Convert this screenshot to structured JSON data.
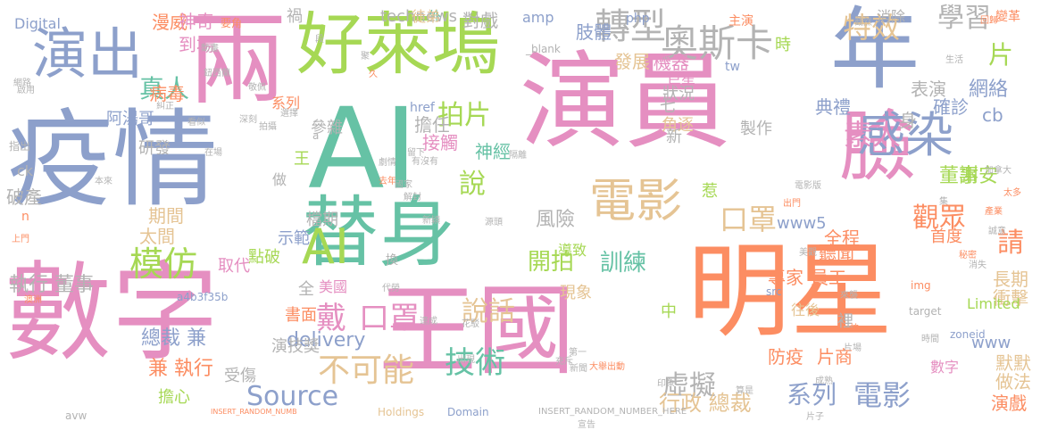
{
  "palette": {
    "pink": "#e58fc1",
    "green": "#66c2a5",
    "orange": "#fc8d62",
    "blue": "#8da0cb",
    "lime": "#a6d854",
    "gold": "#e5c494",
    "grey": "#b3b3b3",
    "yellow": "#ffd92f"
  },
  "words": [
    {
      "text": "疫情",
      "color": "blue",
      "vertical": false
    },
    {
      "text": "AI",
      "color": "green",
      "vertical": false
    },
    {
      "text": "演員",
      "color": "pink",
      "vertical": false
    },
    {
      "text": "數字",
      "color": "pink",
      "vertical": false
    },
    {
      "text": "王國",
      "color": "pink",
      "vertical": false
    },
    {
      "text": "明星",
      "color": "orange",
      "vertical": false
    },
    {
      "text": "兩",
      "color": "pink",
      "vertical": false
    },
    {
      "text": "好萊塢",
      "color": "lime",
      "vertical": false
    },
    {
      "text": "年",
      "color": "blue",
      "vertical": false
    },
    {
      "text": "臉",
      "color": "pink",
      "vertical": false
    },
    {
      "text": "替身",
      "color": "green",
      "vertical": false
    },
    {
      "text": "AI",
      "color": "lime",
      "vertical": false
    },
    {
      "text": "演出",
      "color": "blue",
      "vertical": false
    },
    {
      "text": "電影",
      "color": "gold",
      "vertical": false
    },
    {
      "text": "感染",
      "color": "blue",
      "vertical": false
    },
    {
      "text": "奧斯卡",
      "color": "grey",
      "vertical": false
    },
    {
      "text": "轉型",
      "color": "grey",
      "vertical": false
    },
    {
      "text": "特效",
      "color": "gold",
      "vertical": false
    },
    {
      "text": "學習",
      "color": "grey",
      "vertical": false
    },
    {
      "text": "片",
      "color": "lime",
      "vertical": false
    },
    {
      "text": "口罩",
      "color": "gold",
      "vertical": false
    },
    {
      "text": "觀眾",
      "color": "orange",
      "vertical": false
    },
    {
      "text": "模仿",
      "color": "lime",
      "vertical": false
    },
    {
      "text": "戴",
      "color": "pink",
      "vertical": false
    },
    {
      "text": "口罩",
      "color": "pink",
      "vertical": false
    },
    {
      "text": "不可能",
      "color": "gold",
      "vertical": false
    },
    {
      "text": "技術",
      "color": "green",
      "vertical": false
    },
    {
      "text": "Source",
      "color": "blue",
      "vertical": false
    },
    {
      "text": "說話",
      "color": "gold",
      "vertical": false
    },
    {
      "text": "虛擬",
      "color": "grey",
      "vertical": false
    },
    {
      "text": "系列",
      "color": "blue",
      "vertical": false
    },
    {
      "text": "電影",
      "color": "blue",
      "vertical": false
    },
    {
      "text": "素人",
      "color": "pink",
      "vertical": false
    },
    {
      "text": "拍片",
      "color": "lime",
      "vertical": false
    },
    {
      "text": "開拍",
      "color": "lime",
      "vertical": false
    },
    {
      "text": "訓練",
      "color": "green",
      "vertical": false
    },
    {
      "text": "風險",
      "color": "grey",
      "vertical": false
    },
    {
      "text": "請",
      "color": "orange",
      "vertical": false
    },
    {
      "text": "說",
      "color": "lime",
      "vertical": false
    },
    {
      "text": "謝安",
      "color": "lime",
      "vertical": false
    },
    {
      "text": "董事",
      "color": "lime",
      "vertical": false
    },
    {
      "text": "真人",
      "color": "green",
      "vertical": false
    },
    {
      "text": "總裁 兼",
      "color": "blue",
      "vertical": false
    },
    {
      "text": "兼 執行",
      "color": "orange",
      "vertical": false
    },
    {
      "text": "執行 董事",
      "color": "grey",
      "vertical": false
    },
    {
      "text": "行政 總裁",
      "color": "gold",
      "vertical": false
    },
    {
      "text": "delivery",
      "color": "blue",
      "vertical": false
    },
    {
      "text": "technews",
      "color": "grey",
      "vertical": false
    },
    {
      "text": "網絡",
      "color": "blue",
      "vertical": false
    },
    {
      "text": "典禮",
      "color": "blue",
      "vertical": false
    },
    {
      "text": "確診",
      "color": "blue",
      "vertical": false
    },
    {
      "text": "表演",
      "color": "grey",
      "vertical": false
    },
    {
      "text": "身",
      "color": "grey",
      "vertical": false
    },
    {
      "text": "cb",
      "color": "blue",
      "vertical": false
    },
    {
      "text": "www5",
      "color": "blue",
      "vertical": false
    },
    {
      "text": "www",
      "color": "blue",
      "vertical": false
    },
    {
      "text": "聽聞",
      "color": "orange",
      "vertical": false
    },
    {
      "text": "員工",
      "color": "orange",
      "vertical": false
    },
    {
      "text": "專家",
      "color": "orange",
      "vertical": false
    },
    {
      "text": "首度",
      "color": "orange",
      "vertical": false
    },
    {
      "text": "全程",
      "color": "orange",
      "vertical": false
    },
    {
      "text": "長期",
      "color": "gold",
      "vertical": false
    },
    {
      "text": "衝擊",
      "color": "gold",
      "vertical": false
    },
    {
      "text": "默默",
      "color": "gold",
      "vertical": false
    },
    {
      "text": "做法",
      "color": "gold",
      "vertical": false
    },
    {
      "text": "演戲",
      "color": "orange",
      "vertical": false
    },
    {
      "text": "片商",
      "color": "orange",
      "vertical": false
    },
    {
      "text": "防疫",
      "color": "orange",
      "vertical": false
    },
    {
      "text": "數字",
      "color": "pink",
      "vertical": false
    },
    {
      "text": "Limited",
      "color": "lime",
      "vertical": false
    },
    {
      "text": "zoneid",
      "color": "blue",
      "vertical": false
    },
    {
      "text": "Holdings",
      "color": "gold",
      "vertical": false
    },
    {
      "text": "Domain",
      "color": "blue",
      "vertical": false
    },
    {
      "text": "INSERT_RANDOM_NUMBER_HERE",
      "color": "grey",
      "vertical": false
    },
    {
      "text": "INSERT_RANDOM_NUMB",
      "color": "orange",
      "vertical": false
    },
    {
      "text": "a4b3f35b",
      "color": "blue",
      "vertical": false
    },
    {
      "text": "美國",
      "color": "pink",
      "vertical": false
    },
    {
      "text": "演技獎",
      "color": "grey",
      "vertical": false
    },
    {
      "text": "受傷",
      "color": "grey",
      "vertical": false
    },
    {
      "text": "擔心",
      "color": "lime",
      "vertical": false
    },
    {
      "text": "取代",
      "color": "pink",
      "vertical": false
    },
    {
      "text": "點破",
      "color": "lime",
      "vertical": false
    },
    {
      "text": "導致",
      "color": "lime",
      "vertical": false
    },
    {
      "text": "現象",
      "color": "gold",
      "vertical": false
    },
    {
      "text": "往後",
      "color": "gold",
      "vertical": false
    },
    {
      "text": "中",
      "color": "lime",
      "vertical": false
    },
    {
      "text": "換",
      "color": "grey",
      "vertical": false
    },
    {
      "text": "全",
      "color": "grey",
      "vertical": false
    },
    {
      "text": "書面",
      "color": "orange",
      "vertical": false
    },
    {
      "text": "示範",
      "color": "blue",
      "vertical": false
    },
    {
      "text": "檔期",
      "color": "grey",
      "vertical": false
    },
    {
      "text": "做",
      "color": "grey",
      "vertical": false
    },
    {
      "text": "王",
      "color": "lime",
      "vertical": false
    },
    {
      "text": "參雜",
      "color": "grey",
      "vertical": false
    },
    {
      "text": "擔任",
      "color": "grey",
      "vertical": false
    },
    {
      "text": "接觸",
      "color": "pink",
      "vertical": false
    },
    {
      "text": "神經",
      "color": "green",
      "vertical": false
    },
    {
      "text": "角逐",
      "color": "gold",
      "vertical": false
    },
    {
      "text": "新",
      "color": "grey",
      "vertical": false
    },
    {
      "text": "惹",
      "color": "lime",
      "vertical": false
    },
    {
      "text": "製作",
      "color": "grey",
      "vertical": false
    },
    {
      "text": "七",
      "color": "grey",
      "vertical": false
    },
    {
      "text": "狀況",
      "color": "grey",
      "vertical": false
    },
    {
      "text": "機器",
      "color": "pink",
      "vertical": false
    },
    {
      "text": "發展",
      "color": "gold",
      "vertical": false
    },
    {
      "text": "肢體",
      "color": "blue",
      "vertical": false
    },
    {
      "text": "巨星",
      "color": "pink",
      "vertical": false
    },
    {
      "text": "時",
      "color": "lime",
      "vertical": false
    },
    {
      "text": "tw",
      "color": "blue",
      "vertical": false
    },
    {
      "text": "href",
      "color": "blue",
      "vertical": false
    },
    {
      "text": "amp",
      "color": "blue",
      "vertical": false
    },
    {
      "text": "php",
      "color": "blue",
      "vertical": false
    },
    {
      "text": "外",
      "color": "green",
      "vertical": false
    },
    {
      "text": "對戲",
      "color": "grey",
      "vertical": false
    },
    {
      "text": "徒弟",
      "color": "gold",
      "vertical": false
    },
    {
      "text": "主演",
      "color": "orange",
      "vertical": false
    },
    {
      "text": "消除",
      "color": "grey",
      "vertical": false
    },
    {
      "text": "變革",
      "color": "orange",
      "vertical": false
    },
    {
      "text": "漫威",
      "color": "orange",
      "vertical": false
    },
    {
      "text": "神奇",
      "color": "pink",
      "vertical": false
    },
    {
      "text": "到場",
      "color": "pink",
      "vertical": false
    },
    {
      "text": "病毒",
      "color": "orange",
      "vertical": false
    },
    {
      "text": "阿湯哥",
      "color": "blue",
      "vertical": false
    },
    {
      "text": "破產",
      "color": "grey",
      "vertical": false
    },
    {
      "text": "研發",
      "color": "grey",
      "vertical": false
    },
    {
      "text": "期間",
      "color": "gold",
      "vertical": false
    },
    {
      "text": "太間",
      "color": "gold",
      "vertical": false
    },
    {
      "text": "指出",
      "color": "grey",
      "vertical": false
    },
    {
      "text": "Digital",
      "color": "blue",
      "vertical": false
    },
    {
      "text": "系列",
      "color": "orange",
      "vertical": false
    },
    {
      "text": "a",
      "color": "grey",
      "vertical": false
    },
    {
      "text": "ck",
      "color": "grey",
      "vertical": false
    },
    {
      "text": "n",
      "color": "orange",
      "vertical": false
    },
    {
      "text": "avw",
      "color": "grey",
      "vertical": false
    },
    {
      "text": "target",
      "color": "grey",
      "vertical": false
    },
    {
      "text": "img",
      "color": "orange",
      "vertical": false
    },
    {
      "text": "src",
      "color": "blue",
      "vertical": false
    },
    {
      "text": "_blank",
      "color": "grey",
      "vertical": false
    },
    {
      "text": "禍",
      "color": "grey",
      "vertical": false
    },
    {
      "text": "裡",
      "color": "grey",
      "vertical": false
    },
    {
      "text": "要角",
      "color": "orange",
      "vertical": false
    },
    {
      "text": "生活",
      "color": "grey",
      "vertical": false
    },
    {
      "text": "截然",
      "color": "grey",
      "vertical": false
    },
    {
      "text": "回歸",
      "color": "orange",
      "vertical": false
    },
    {
      "text": "秘密",
      "color": "orange",
      "vertical": false
    },
    {
      "text": "誠意",
      "color": "grey",
      "vertical": false
    },
    {
      "text": "產業",
      "color": "orange",
      "vertical": false
    },
    {
      "text": "消失",
      "color": "grey",
      "vertical": false
    },
    {
      "text": "集",
      "color": "grey",
      "vertical": false
    },
    {
      "text": "太多",
      "color": "orange",
      "vertical": false
    },
    {
      "text": "加拿大",
      "color": "grey",
      "vertical": false
    },
    {
      "text": "電影版",
      "color": "grey",
      "vertical": false
    },
    {
      "text": "出門",
      "color": "orange",
      "vertical": false
    },
    {
      "text": "美觀",
      "color": "grey",
      "vertical": false
    },
    {
      "text": "來襲",
      "color": "grey",
      "vertical": false
    },
    {
      "text": "怕",
      "color": "orange",
      "vertical": false
    },
    {
      "text": "片場",
      "color": "grey",
      "vertical": false
    },
    {
      "text": "時間",
      "color": "grey",
      "vertical": false
    },
    {
      "text": "片子",
      "color": "grey",
      "vertical": false
    },
    {
      "text": "成熟",
      "color": "grey",
      "vertical": false
    },
    {
      "text": "算是",
      "color": "grey",
      "vertical": false
    },
    {
      "text": "印象",
      "color": "grey",
      "vertical": false
    },
    {
      "text": "宣告",
      "color": "grey",
      "vertical": false
    },
    {
      "text": "新聞",
      "color": "grey",
      "vertical": false
    },
    {
      "text": "大舉出動",
      "color": "orange",
      "vertical": false
    },
    {
      "text": "第一",
      "color": "grey",
      "vertical": false
    },
    {
      "text": "充斥",
      "color": "grey",
      "vertical": false
    },
    {
      "text": "出現",
      "color": "grey",
      "vertical": false
    },
    {
      "text": "花駁",
      "color": "grey",
      "vertical": false
    },
    {
      "text": "達成",
      "color": "grey",
      "vertical": false
    },
    {
      "text": "代勞",
      "color": "grey",
      "vertical": false
    },
    {
      "text": "新穎",
      "color": "grey",
      "vertical": false
    },
    {
      "text": "源頭",
      "color": "grey",
      "vertical": false
    },
    {
      "text": "留下",
      "color": "grey",
      "vertical": false
    },
    {
      "text": "隔離",
      "color": "grey",
      "vertical": false
    },
    {
      "text": "有沒有",
      "color": "grey",
      "vertical": false
    },
    {
      "text": "劇情",
      "color": "grey",
      "vertical": false
    },
    {
      "text": "去年",
      "color": "orange",
      "vertical": false
    },
    {
      "text": "國家",
      "color": "grey",
      "vertical": false
    },
    {
      "text": "解封",
      "color": "grey",
      "vertical": false
    },
    {
      "text": "澳洲",
      "color": "orange",
      "vertical": false
    },
    {
      "text": "本來",
      "color": "grey",
      "vertical": false
    },
    {
      "text": "上門",
      "color": "orange",
      "vertical": false
    },
    {
      "text": "在場",
      "color": "grey",
      "vertical": false
    },
    {
      "text": "敬佩",
      "color": "grey",
      "vertical": false
    },
    {
      "text": "糾正",
      "color": "grey",
      "vertical": false
    },
    {
      "text": "拍攝",
      "color": "grey",
      "vertical": false
    },
    {
      "text": "選擇",
      "color": "grey",
      "vertical": false
    },
    {
      "text": "看似",
      "color": "grey",
      "vertical": false
    },
    {
      "text": "深刻",
      "color": "grey",
      "vertical": false
    },
    {
      "text": "啟用",
      "color": "grey",
      "vertical": false
    },
    {
      "text": "網路",
      "color": "grey",
      "vertical": false
    },
    {
      "text": "鈕西蘭",
      "color": "grey",
      "vertical": false
    },
    {
      "text": "動畫",
      "color": "grey",
      "vertical": false
    },
    {
      "text": "久",
      "color": "orange",
      "vertical": false
    },
    {
      "text": "聚",
      "color": "grey",
      "vertical": false
    },
    {
      "text": "段",
      "color": "grey",
      "vertical": false
    }
  ]
}
